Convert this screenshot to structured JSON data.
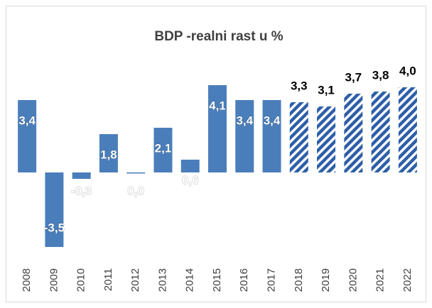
{
  "chart_data": {
    "type": "bar",
    "title": "BDP -realni rast u %",
    "categories": [
      "2008",
      "2009",
      "2010",
      "2011",
      "2012",
      "2013",
      "2014",
      "2015",
      "2016",
      "2017",
      "2018",
      "2019",
      "2020",
      "2021",
      "2022"
    ],
    "values": [
      3.4,
      -3.5,
      -0.3,
      1.8,
      0.0,
      2.1,
      0.6,
      4.1,
      3.4,
      3.4,
      3.3,
      3.1,
      3.7,
      3.8,
      4.0
    ],
    "value_labels": [
      "3,4",
      "-3,5",
      "-0,3",
      "1,8",
      "0,0",
      "2,1",
      "0,6",
      "4,1",
      "3,4",
      "3,4",
      "3,3",
      "3,1",
      "3,7",
      "3,8",
      "4,0"
    ],
    "color": "#4a7ebb",
    "patterns": [
      "solid",
      "solid",
      "solid",
      "solid",
      "solid",
      "solid",
      "solid",
      "solid",
      "solid",
      "solid",
      "hatch",
      "hatch",
      "hatch",
      "hatch",
      "hatch"
    ]
  }
}
